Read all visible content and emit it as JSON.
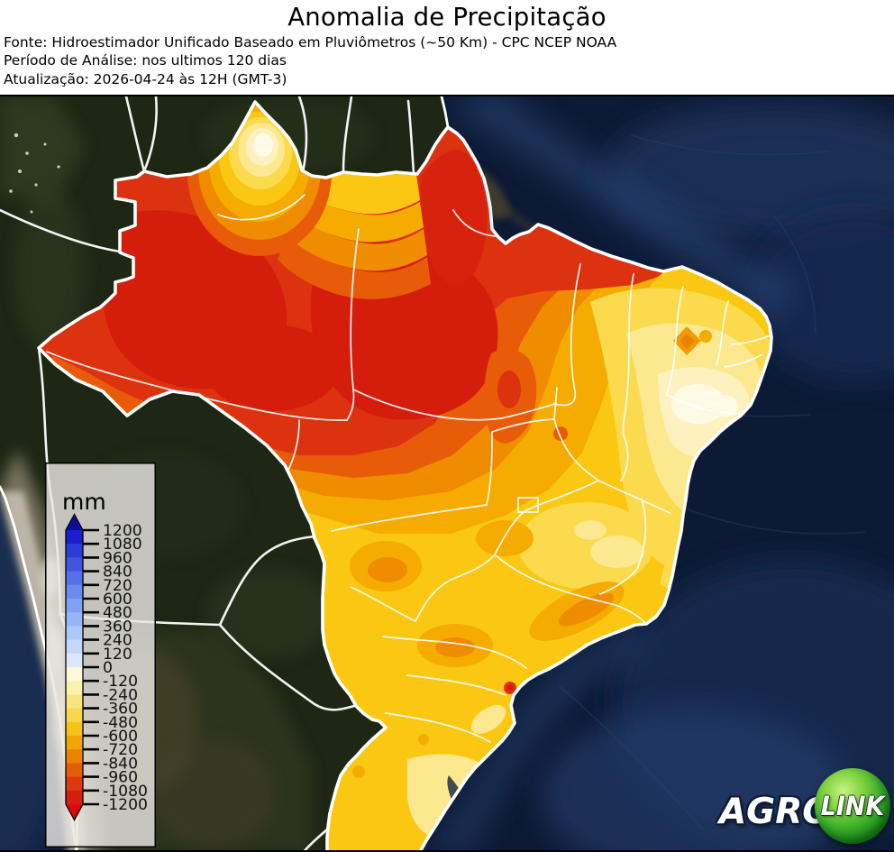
{
  "header": {
    "title": "Anomalia de Precipitação",
    "source_line": "Fonte: Hidroestimador Unificado Baseado em Pluviômetros (~50 Km) - CPC NCEP NOAA",
    "period_line": "Período de Análise: nos ultimos 120 dias",
    "update_line": "Atualização: 2026-04-24 às 12H (GMT-3)"
  },
  "legend": {
    "unit_label": "mm",
    "tick_labels": [
      "1200",
      "1080",
      "960",
      "840",
      "720",
      "600",
      "480",
      "360",
      "240",
      "120",
      "0",
      "-120",
      "-240",
      "-360",
      "-480",
      "-600",
      "-720",
      "-840",
      "-960",
      "-1080",
      "-1200"
    ],
    "segment_colors": [
      "#1b1fca",
      "#2e3cd6",
      "#4156e0",
      "#5571e8",
      "#6a8bee",
      "#7fa3f2",
      "#95b6f5",
      "#abc8f8",
      "#c2d7fa",
      "#dbe7fc",
      "#fcf8dc",
      "#faf0b0",
      "#f9e483",
      "#f8d64e",
      "#f6c218",
      "#f3a504",
      "#ea8204",
      "#e25f08",
      "#da3a0e",
      "#d21f0e"
    ],
    "arrow_top_color": "#0d0d9b",
    "arrow_bottom_color": "#de0710",
    "box_fill": "rgba(233,231,226,0.82)",
    "box_border": "#000000"
  },
  "map": {
    "ocean_color": "#0d1a36",
    "land_color": "#1d2714",
    "border_color": "#ffffff",
    "anomaly_palette": {
      "minus_1200_or_less": "#d51d0c",
      "minus_1080": "#dc3210",
      "minus_960": "#e85c09",
      "minus_840": "#f08c00",
      "minus_720": "#f5ab00",
      "minus_600": "#fac813",
      "minus_480": "#fbda4e",
      "minus_360": "#fce88e",
      "minus_240": "#fdf2bf",
      "minus_120_to_0": "#fefae6"
    }
  },
  "logo": {
    "agro_text": "AGRO",
    "link_text": "LINK",
    "circle_color": "#2ea226"
  }
}
